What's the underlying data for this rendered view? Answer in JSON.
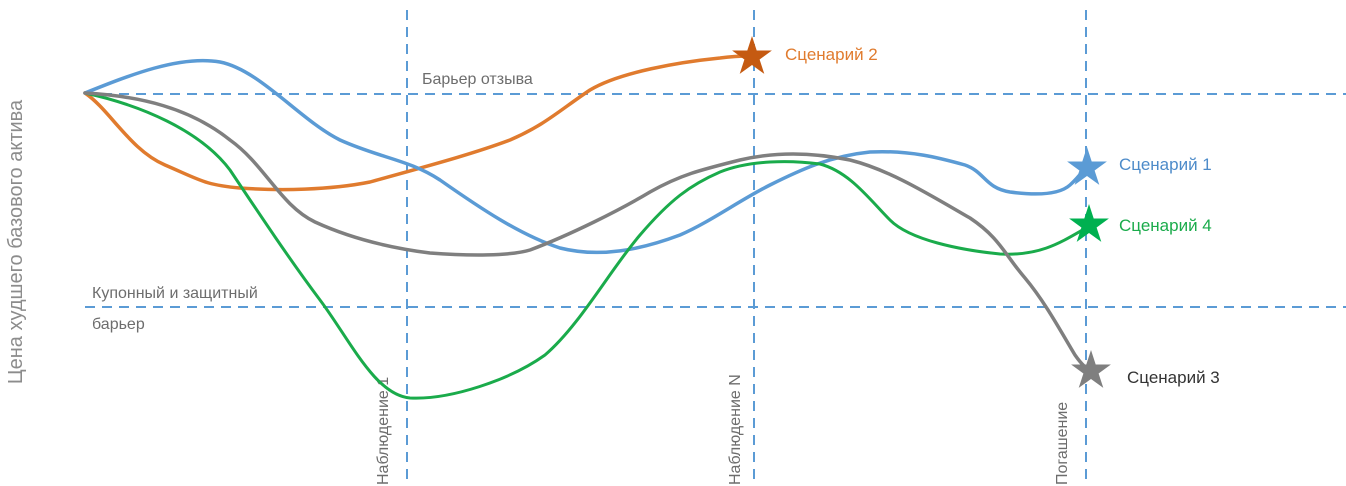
{
  "axis": {
    "y_label": "Цена худшего базового актива"
  },
  "barriers": {
    "call_label": "Барьер отзыва",
    "coupon_label_line1": "Купонный и защитный",
    "coupon_label_line2": "барьер"
  },
  "observations": {
    "first": "Наблюдение 1",
    "nth": "Наблюдение N",
    "redemption": "Погашение"
  },
  "scenarios": [
    {
      "label": "Сценарий 1",
      "color": "#5b9bd5"
    },
    {
      "label": "Сценарий 2",
      "color": "#e07b2e"
    },
    {
      "label": "Сценарий 3",
      "color": "#7f7f7f"
    },
    {
      "label": "Сценарий 4",
      "color": "#1aab4b"
    }
  ],
  "colors": {
    "guide_lines": "#5b9bd5",
    "label_text": "#6d6d6d",
    "axis_text": "#8c8c8c",
    "scenario_3_text": "#333333"
  }
}
